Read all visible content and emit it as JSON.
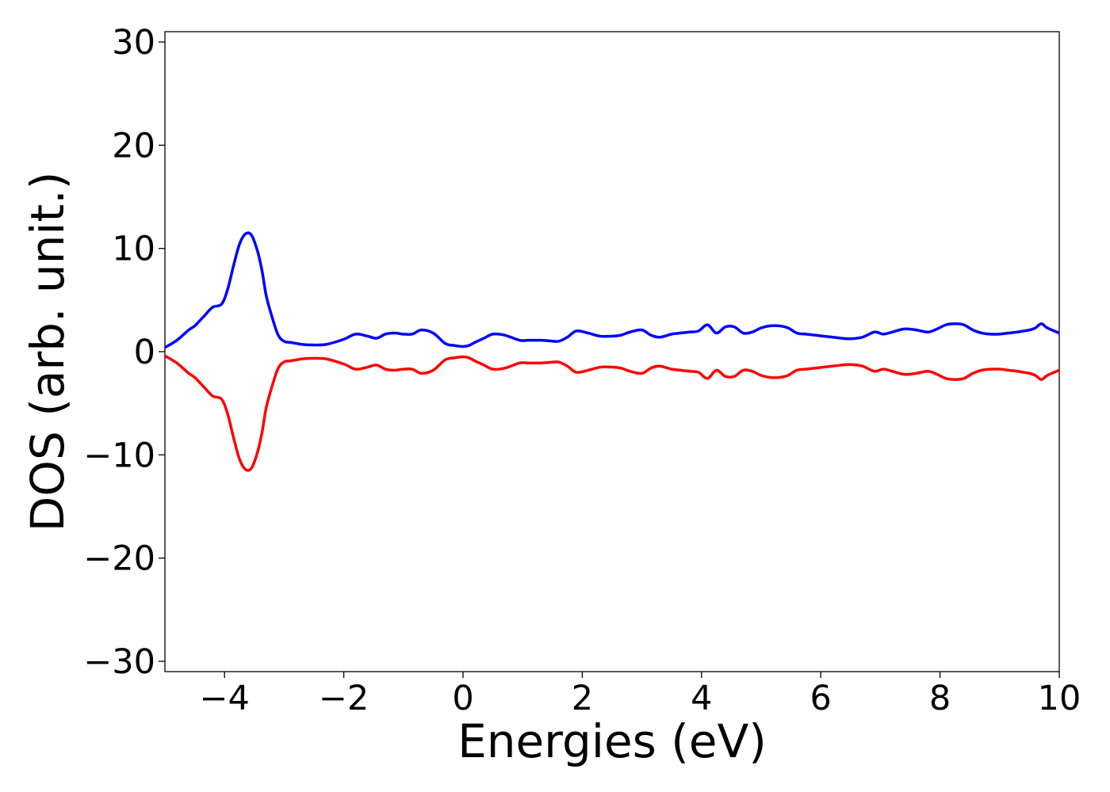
{
  "chart_data": {
    "type": "line",
    "title": "",
    "xlabel": "Energies (eV)",
    "ylabel": "DOS (arb. unit.)",
    "xlim": [
      -5,
      10
    ],
    "ylim": [
      -31,
      31
    ],
    "xticks": [
      -4,
      -2,
      0,
      2,
      4,
      6,
      8,
      10
    ],
    "yticks": [
      -30,
      -20,
      -10,
      0,
      10,
      20,
      30
    ],
    "xtick_labels": [
      "−4",
      "−2",
      "0",
      "2",
      "4",
      "6",
      "8",
      "10"
    ],
    "ytick_labels": [
      "−30",
      "−20",
      "−10",
      "0",
      "10",
      "20",
      "30"
    ],
    "grid": false,
    "legend": "none",
    "series": [
      {
        "color": "#0000ff",
        "x": [
          -5,
          -4.8,
          -4.6,
          -4.5,
          -4.35,
          -4.2,
          -4.05,
          -3.95,
          -3.85,
          -3.75,
          -3.65,
          -3.55,
          -3.45,
          -3.37,
          -3.3,
          -3.2,
          -3.1,
          -3.0,
          -2.9,
          -2.8,
          -2.7,
          -2.55,
          -2.3,
          -2.0,
          -1.8,
          -1.6,
          -1.45,
          -1.3,
          -1.15,
          -1.0,
          -0.85,
          -0.7,
          -0.5,
          -0.3,
          -0.15,
          0.0,
          0.1,
          0.2,
          0.35,
          0.5,
          0.7,
          0.95,
          1.1,
          1.3,
          1.45,
          1.6,
          1.75,
          1.9,
          2.1,
          2.3,
          2.5,
          2.65,
          2.8,
          3.0,
          3.15,
          3.3,
          3.5,
          3.65,
          3.8,
          3.95,
          4.1,
          4.25,
          4.4,
          4.55,
          4.7,
          4.85,
          5.0,
          5.15,
          5.3,
          5.45,
          5.6,
          5.75,
          5.9,
          6.05,
          6.2,
          6.35,
          6.5,
          6.7,
          6.9,
          7.05,
          7.2,
          7.4,
          7.6,
          7.8,
          7.95,
          8.1,
          8.25,
          8.4,
          8.55,
          8.7,
          8.85,
          9.0,
          9.15,
          9.3,
          9.4,
          9.5,
          9.6,
          9.7,
          9.8,
          10.0
        ],
        "y": [
          0.4,
          1.1,
          2.1,
          2.5,
          3.4,
          4.3,
          4.6,
          6.0,
          8.3,
          10.4,
          11.4,
          11.3,
          9.8,
          7.8,
          5.4,
          3.3,
          1.6,
          1.0,
          0.9,
          0.8,
          0.7,
          0.65,
          0.7,
          1.2,
          1.7,
          1.5,
          1.3,
          1.7,
          1.8,
          1.7,
          1.7,
          2.1,
          1.8,
          0.8,
          0.6,
          0.5,
          0.6,
          0.9,
          1.3,
          1.7,
          1.6,
          1.1,
          1.1,
          1.1,
          1.05,
          1.0,
          1.4,
          2.0,
          1.8,
          1.5,
          1.5,
          1.6,
          1.9,
          2.1,
          1.6,
          1.4,
          1.7,
          1.8,
          1.9,
          2.0,
          2.6,
          1.8,
          2.4,
          2.4,
          1.8,
          1.9,
          2.3,
          2.5,
          2.5,
          2.3,
          1.8,
          1.7,
          1.6,
          1.5,
          1.4,
          1.3,
          1.25,
          1.4,
          1.9,
          1.7,
          1.9,
          2.2,
          2.1,
          1.9,
          2.2,
          2.6,
          2.7,
          2.6,
          2.1,
          1.8,
          1.7,
          1.7,
          1.8,
          1.9,
          2.0,
          2.1,
          2.3,
          2.7,
          2.3,
          1.8
        ]
      },
      {
        "color": "#ff0000",
        "x": [
          -5,
          -4.8,
          -4.6,
          -4.5,
          -4.35,
          -4.2,
          -4.05,
          -3.95,
          -3.85,
          -3.75,
          -3.65,
          -3.55,
          -3.45,
          -3.37,
          -3.3,
          -3.2,
          -3.1,
          -3.0,
          -2.9,
          -2.8,
          -2.7,
          -2.55,
          -2.3,
          -2.0,
          -1.8,
          -1.6,
          -1.45,
          -1.3,
          -1.15,
          -1.0,
          -0.85,
          -0.7,
          -0.5,
          -0.3,
          -0.15,
          0.0,
          0.1,
          0.2,
          0.35,
          0.5,
          0.7,
          0.95,
          1.1,
          1.3,
          1.45,
          1.6,
          1.75,
          1.9,
          2.1,
          2.3,
          2.5,
          2.65,
          2.8,
          3.0,
          3.15,
          3.3,
          3.5,
          3.65,
          3.8,
          3.95,
          4.1,
          4.25,
          4.4,
          4.55,
          4.7,
          4.85,
          5.0,
          5.15,
          5.3,
          5.45,
          5.6,
          5.75,
          5.9,
          6.05,
          6.2,
          6.35,
          6.5,
          6.7,
          6.9,
          7.05,
          7.2,
          7.4,
          7.6,
          7.8,
          7.95,
          8.1,
          8.25,
          8.4,
          8.55,
          8.7,
          8.85,
          9.0,
          9.15,
          9.3,
          9.4,
          9.5,
          9.6,
          9.7,
          9.8,
          10.0
        ],
        "y": [
          -0.4,
          -1.1,
          -2.1,
          -2.5,
          -3.4,
          -4.3,
          -4.6,
          -6.0,
          -8.3,
          -10.4,
          -11.4,
          -11.3,
          -9.8,
          -7.8,
          -5.4,
          -3.3,
          -1.6,
          -1.0,
          -0.9,
          -0.8,
          -0.7,
          -0.65,
          -0.7,
          -1.2,
          -1.7,
          -1.5,
          -1.3,
          -1.7,
          -1.8,
          -1.7,
          -1.7,
          -2.1,
          -1.8,
          -0.8,
          -0.6,
          -0.5,
          -0.6,
          -0.9,
          -1.3,
          -1.7,
          -1.6,
          -1.1,
          -1.1,
          -1.1,
          -1.05,
          -1.0,
          -1.4,
          -2.0,
          -1.8,
          -1.5,
          -1.5,
          -1.6,
          -1.9,
          -2.1,
          -1.6,
          -1.4,
          -1.7,
          -1.8,
          -1.9,
          -2.0,
          -2.6,
          -1.8,
          -2.4,
          -2.4,
          -1.8,
          -1.9,
          -2.3,
          -2.5,
          -2.5,
          -2.3,
          -1.8,
          -1.7,
          -1.6,
          -1.5,
          -1.4,
          -1.3,
          -1.25,
          -1.4,
          -1.9,
          -1.7,
          -1.9,
          -2.2,
          -2.1,
          -1.9,
          -2.2,
          -2.6,
          -2.7,
          -2.6,
          -2.1,
          -1.8,
          -1.7,
          -1.7,
          -1.8,
          -1.9,
          -2.0,
          -2.1,
          -2.3,
          -2.7,
          -2.3,
          -1.8
        ]
      }
    ]
  }
}
